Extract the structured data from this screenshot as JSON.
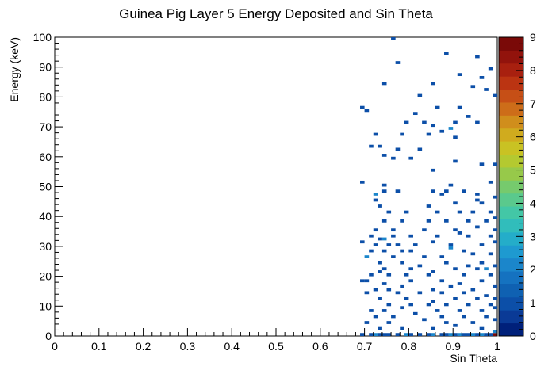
{
  "chart_data": {
    "type": "heatmap",
    "title": "Guinea Pig Layer 5 Energy Deposited and Sin Theta",
    "xlabel": "Sin Theta",
    "ylabel": "Energy (keV)",
    "xlim": [
      0,
      1
    ],
    "ylim": [
      0,
      100
    ],
    "x_ticks": [
      "0",
      "0.1",
      "0.2",
      "0.3",
      "0.4",
      "0.5",
      "0.6",
      "0.7",
      "0.8",
      "0.9",
      "1"
    ],
    "y_ticks": [
      "0",
      "10",
      "20",
      "30",
      "40",
      "50",
      "60",
      "70",
      "80",
      "90",
      "100"
    ],
    "z_ticks": [
      "0",
      "1",
      "2",
      "3",
      "4",
      "5",
      "6",
      "7",
      "8",
      "9"
    ],
    "zlim": [
      0,
      9
    ],
    "bin_width_x": 0.01,
    "bin_width_y": 1,
    "palette": [
      "#00207a",
      "#0a3a96",
      "#0c4fa8",
      "#0f61b2",
      "#1572c0",
      "#1b86cb",
      "#1e9ad0",
      "#24adc9",
      "#31bdbb",
      "#43c7a6",
      "#5ac98d",
      "#76ca6d",
      "#97c94a",
      "#b4c930",
      "#c9c223",
      "#d0ab1e",
      "#d08e1c",
      "#cd6d19",
      "#c64f16",
      "#bb3412",
      "#a8200f",
      "#92130c",
      "#7a0a08"
    ],
    "points": [
      [
        0.76,
        99,
        1
      ],
      [
        0.88,
        94,
        1
      ],
      [
        0.95,
        93,
        1
      ],
      [
        0.77,
        91,
        1
      ],
      [
        0.98,
        89,
        1
      ],
      [
        0.91,
        87,
        1
      ],
      [
        0.96,
        86,
        1
      ],
      [
        0.74,
        84,
        1
      ],
      [
        0.85,
        84,
        1
      ],
      [
        0.94,
        83,
        1
      ],
      [
        0.97,
        82,
        1
      ],
      [
        0.82,
        80,
        1
      ],
      [
        0.99,
        80,
        1
      ],
      [
        0.69,
        76,
        1
      ],
      [
        0.7,
        75,
        1
      ],
      [
        0.86,
        76,
        1
      ],
      [
        0.91,
        76,
        1
      ],
      [
        0.81,
        74,
        1
      ],
      [
        0.93,
        73,
        1
      ],
      [
        0.79,
        71,
        1
      ],
      [
        0.83,
        71,
        1
      ],
      [
        0.9,
        71,
        1
      ],
      [
        0.95,
        71,
        1
      ],
      [
        0.85,
        70,
        1
      ],
      [
        0.87,
        68,
        1
      ],
      [
        0.89,
        69,
        2
      ],
      [
        0.72,
        67,
        1
      ],
      [
        0.78,
        67,
        1
      ],
      [
        0.84,
        67,
        1
      ],
      [
        0.9,
        66,
        1
      ],
      [
        0.71,
        63,
        1
      ],
      [
        0.73,
        63,
        1
      ],
      [
        0.77,
        62,
        1
      ],
      [
        0.82,
        62,
        1
      ],
      [
        0.74,
        60,
        1
      ],
      [
        0.8,
        59,
        1
      ],
      [
        0.76,
        59,
        1
      ],
      [
        0.9,
        58,
        1
      ],
      [
        0.96,
        57,
        1
      ],
      [
        0.99,
        57,
        1
      ],
      [
        0.85,
        55,
        1
      ],
      [
        0.69,
        51,
        1
      ],
      [
        0.74,
        50,
        1
      ],
      [
        0.89,
        50,
        1
      ],
      [
        0.98,
        51,
        1
      ],
      [
        0.72,
        47,
        2
      ],
      [
        0.74,
        48,
        1
      ],
      [
        0.77,
        48,
        1
      ],
      [
        0.85,
        48,
        1
      ],
      [
        0.88,
        48,
        1
      ],
      [
        0.92,
        48,
        1
      ],
      [
        0.87,
        47,
        1
      ],
      [
        0.95,
        47,
        1
      ],
      [
        0.72,
        45,
        1
      ],
      [
        0.95,
        45,
        1
      ],
      [
        0.73,
        43,
        1
      ],
      [
        0.84,
        43,
        1
      ],
      [
        0.9,
        44,
        1
      ],
      [
        0.96,
        44,
        1
      ],
      [
        0.99,
        46,
        1
      ],
      [
        0.75,
        41,
        1
      ],
      [
        0.79,
        41,
        1
      ],
      [
        0.86,
        41,
        1
      ],
      [
        0.91,
        41,
        1
      ],
      [
        0.94,
        41,
        1
      ],
      [
        0.98,
        41,
        1
      ],
      [
        0.74,
        38,
        1
      ],
      [
        0.78,
        38,
        1
      ],
      [
        0.84,
        38,
        1
      ],
      [
        0.88,
        38,
        1
      ],
      [
        0.93,
        38,
        1
      ],
      [
        0.97,
        38,
        1
      ],
      [
        0.99,
        39,
        1
      ],
      [
        0.72,
        35,
        1
      ],
      [
        0.76,
        35,
        1
      ],
      [
        0.83,
        35,
        1
      ],
      [
        0.9,
        35,
        1
      ],
      [
        0.95,
        36,
        1
      ],
      [
        0.99,
        35,
        1
      ],
      [
        0.71,
        33,
        1
      ],
      [
        0.73,
        32,
        1
      ],
      [
        0.74,
        32,
        2
      ],
      [
        0.76,
        33,
        1
      ],
      [
        0.8,
        33,
        1
      ],
      [
        0.86,
        33,
        1
      ],
      [
        0.91,
        34,
        1
      ],
      [
        0.93,
        33,
        1
      ],
      [
        0.98,
        33,
        1
      ],
      [
        0.69,
        31,
        1
      ],
      [
        0.72,
        30,
        1
      ],
      [
        0.75,
        30,
        1
      ],
      [
        0.77,
        30,
        1
      ],
      [
        0.81,
        30,
        1
      ],
      [
        0.85,
        31,
        1
      ],
      [
        0.89,
        30,
        1
      ],
      [
        0.96,
        30,
        1
      ],
      [
        0.99,
        31,
        1
      ],
      [
        0.71,
        28,
        1
      ],
      [
        0.74,
        28,
        1
      ],
      [
        0.78,
        28,
        1
      ],
      [
        0.8,
        28,
        1
      ],
      [
        0.89,
        29,
        2
      ],
      [
        0.92,
        28,
        1
      ],
      [
        0.7,
        26,
        2
      ],
      [
        0.76,
        26,
        1
      ],
      [
        0.83,
        26,
        1
      ],
      [
        0.87,
        26,
        1
      ],
      [
        0.94,
        27,
        1
      ],
      [
        0.98,
        27,
        1
      ],
      [
        0.73,
        24,
        1
      ],
      [
        0.78,
        24,
        1
      ],
      [
        0.82,
        23,
        1
      ],
      [
        0.88,
        24,
        1
      ],
      [
        0.93,
        23,
        1
      ],
      [
        0.96,
        24,
        1
      ],
      [
        0.74,
        22,
        1
      ],
      [
        0.8,
        22,
        1
      ],
      [
        0.85,
        21,
        1
      ],
      [
        0.9,
        22,
        1
      ],
      [
        0.95,
        22,
        1
      ],
      [
        0.97,
        22,
        2
      ],
      [
        0.99,
        23,
        1
      ],
      [
        0.71,
        20,
        1
      ],
      [
        0.73,
        21,
        1
      ],
      [
        0.75,
        20,
        1
      ],
      [
        0.79,
        20,
        1
      ],
      [
        0.84,
        20,
        1
      ],
      [
        0.92,
        20,
        1
      ],
      [
        0.98,
        20,
        1
      ],
      [
        0.69,
        18,
        1
      ],
      [
        0.7,
        18,
        1
      ],
      [
        0.74,
        17,
        1
      ],
      [
        0.8,
        18,
        1
      ],
      [
        0.87,
        18,
        1
      ],
      [
        0.91,
        17,
        1
      ],
      [
        0.96,
        18,
        1
      ],
      [
        0.72,
        15,
        1
      ],
      [
        0.75,
        15,
        1
      ],
      [
        0.78,
        16,
        1
      ],
      [
        0.85,
        15,
        1
      ],
      [
        0.89,
        16,
        1
      ],
      [
        0.94,
        15,
        1
      ],
      [
        0.99,
        16,
        1
      ],
      [
        0.7,
        14,
        1
      ],
      [
        0.77,
        14,
        1
      ],
      [
        0.82,
        14,
        1
      ],
      [
        0.87,
        14,
        1
      ],
      [
        0.92,
        14,
        1
      ],
      [
        0.97,
        13,
        1
      ],
      [
        0.73,
        12,
        1
      ],
      [
        0.79,
        12,
        1
      ],
      [
        0.85,
        11,
        1
      ],
      [
        0.9,
        12,
        1
      ],
      [
        0.95,
        12,
        1
      ],
      [
        0.99,
        12,
        1
      ],
      [
        0.75,
        10,
        1
      ],
      [
        0.8,
        10,
        1
      ],
      [
        0.84,
        10,
        1
      ],
      [
        0.88,
        10,
        1
      ],
      [
        0.93,
        10,
        1
      ],
      [
        0.98,
        10,
        1
      ],
      [
        0.71,
        8,
        1
      ],
      [
        0.74,
        8,
        1
      ],
      [
        0.78,
        9,
        1
      ],
      [
        0.86,
        8,
        1
      ],
      [
        0.91,
        8,
        1
      ],
      [
        0.96,
        8,
        1
      ],
      [
        0.99,
        9,
        1
      ],
      [
        0.72,
        6,
        1
      ],
      [
        0.76,
        6,
        1
      ],
      [
        0.81,
        7,
        1
      ],
      [
        0.87,
        6,
        1
      ],
      [
        0.92,
        6,
        1
      ],
      [
        0.97,
        6,
        1
      ],
      [
        0.7,
        4,
        1
      ],
      [
        0.75,
        4,
        1
      ],
      [
        0.83,
        5,
        1
      ],
      [
        0.88,
        4,
        1
      ],
      [
        0.94,
        4,
        1
      ],
      [
        0.99,
        5,
        1
      ],
      [
        0.73,
        2,
        1
      ],
      [
        0.78,
        2,
        1
      ],
      [
        0.85,
        2,
        1
      ],
      [
        0.9,
        3,
        1
      ],
      [
        0.96,
        2,
        1
      ],
      [
        0.69,
        0,
        1
      ],
      [
        0.71,
        0,
        1
      ],
      [
        0.72,
        0,
        2
      ],
      [
        0.73,
        0,
        1
      ],
      [
        0.74,
        0,
        1
      ],
      [
        0.75,
        0,
        1
      ],
      [
        0.77,
        0,
        1
      ],
      [
        0.79,
        0,
        2
      ],
      [
        0.8,
        0,
        1
      ],
      [
        0.82,
        0,
        1
      ],
      [
        0.84,
        0,
        1
      ],
      [
        0.85,
        0,
        2
      ],
      [
        0.87,
        0,
        1
      ],
      [
        0.88,
        0,
        1
      ],
      [
        0.89,
        0,
        2
      ],
      [
        0.9,
        0,
        1
      ],
      [
        0.91,
        0,
        2
      ],
      [
        0.92,
        0,
        1
      ],
      [
        0.93,
        0,
        1
      ],
      [
        0.94,
        0,
        2
      ],
      [
        0.95,
        0,
        1
      ],
      [
        0.96,
        0,
        2
      ],
      [
        0.97,
        0,
        1
      ],
      [
        0.98,
        0,
        1
      ],
      [
        0.99,
        0,
        9
      ],
      [
        0.99,
        1,
        2
      ]
    ]
  }
}
